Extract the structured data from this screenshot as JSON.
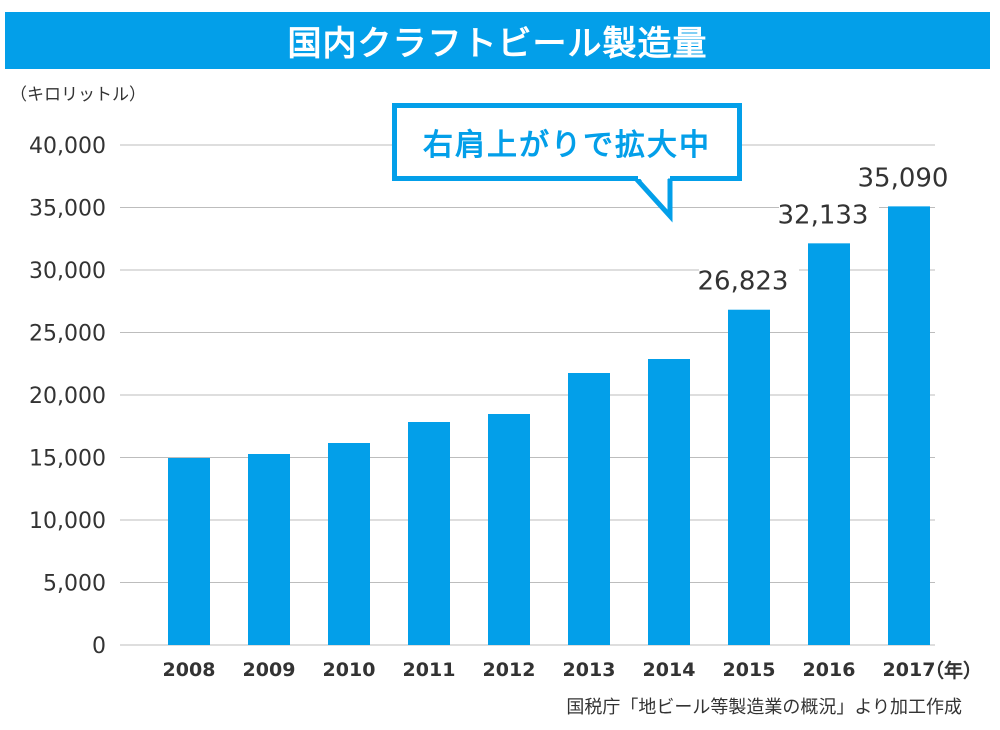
{
  "chart_data": {
    "type": "bar",
    "title": "国内クラフトビール製造量",
    "ylabel": "（キロリットル）",
    "xlabel": "（年）",
    "categories": [
      "2008",
      "2009",
      "2010",
      "2011",
      "2012",
      "2013",
      "2014",
      "2015",
      "2016",
      "2017"
    ],
    "values": [
      14960,
      15280,
      16160,
      17840,
      18480,
      21760,
      22880,
      26823,
      32133,
      35090
    ],
    "data_labels": [
      null,
      null,
      null,
      null,
      null,
      null,
      null,
      "26,823",
      "32,133",
      "35,090"
    ],
    "ylim": [
      0,
      40000
    ],
    "yticks": [
      0,
      5000,
      10000,
      15000,
      20000,
      25000,
      30000,
      35000,
      40000
    ],
    "ytick_labels": [
      "0",
      "5,000",
      "10,000",
      "15,000",
      "20,000",
      "25,000",
      "30,000",
      "35,000",
      "40,000"
    ],
    "grid": true,
    "bar_color": "#039fe9",
    "annotation": "右肩上がりで拡大中",
    "source": "国税庁「地ビール等製造業の概況」より加工作成"
  },
  "colors": {
    "accent": "#039fe9",
    "grid": "#bdbdbd",
    "text": "#333333"
  }
}
